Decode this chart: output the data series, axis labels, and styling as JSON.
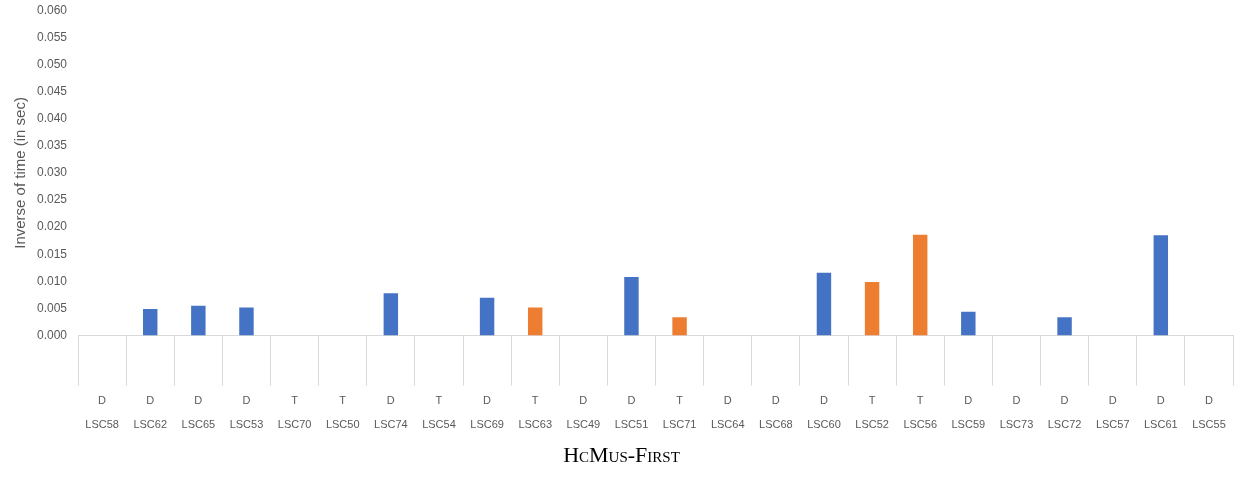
{
  "chart_data": {
    "type": "bar",
    "xlabel": "HcMus-First",
    "ylabel": "Inverse of time (in sec)",
    "categories": [
      "D\nLSC58",
      "D\nLSC62",
      "D\nLSC65",
      "D\nLSC53",
      "T\nLSC70",
      "T\nLSC50",
      "D\nLSC74",
      "T\nLSC54",
      "D\nLSC69",
      "T\nLSC63",
      "D\nLSC49",
      "D\nLSC51",
      "T\nLSC71",
      "D\nLSC64",
      "D\nLSC68",
      "D\nLSC60",
      "T\nLSC52",
      "T\nLSC56",
      "D\nLSC59",
      "D\nLSC73",
      "D\nLSC72",
      "D\nLSC57",
      "D\nLSC61",
      "D\nLSC55"
    ],
    "values": [
      0,
      0.0049,
      0.0055,
      0.0052,
      0,
      0,
      0.0078,
      0,
      0.007,
      0.0052,
      0,
      0.0108,
      0.0034,
      0,
      0,
      0.0116,
      0.0099,
      0.0186,
      0.0044,
      0,
      0.0034,
      0,
      0.0185,
      0
    ],
    "colors": [
      "#4472c4",
      "#4472c4",
      "#4472c4",
      "#4472c4",
      "#ed7d31",
      "#ed7d31",
      "#4472c4",
      "#ed7d31",
      "#4472c4",
      "#ed7d31",
      "#4472c4",
      "#4472c4",
      "#ed7d31",
      "#4472c4",
      "#4472c4",
      "#4472c4",
      "#ed7d31",
      "#ed7d31",
      "#4472c4",
      "#4472c4",
      "#4472c4",
      "#4472c4",
      "#4472c4",
      "#4472c4"
    ],
    "ylim": [
      0,
      0.06
    ],
    "yticks": [
      {
        "value": 0,
        "label": "0.000"
      },
      {
        "value": 0.005,
        "label": "0.005"
      },
      {
        "value": 0.01,
        "label": "0.010"
      },
      {
        "value": 0.015,
        "label": "0.015"
      },
      {
        "value": 0.02,
        "label": "0.020"
      },
      {
        "value": 0.025,
        "label": "0.025"
      },
      {
        "value": 0.03,
        "label": "0.030"
      },
      {
        "value": 0.035,
        "label": "0.035"
      },
      {
        "value": 0.04,
        "label": "0.040"
      },
      {
        "value": 0.045,
        "label": "0.045"
      },
      {
        "value": 0.05,
        "label": "0.050"
      },
      {
        "value": 0.055,
        "label": "0.055"
      },
      {
        "value": 0.06,
        "label": "0.060"
      }
    ]
  }
}
